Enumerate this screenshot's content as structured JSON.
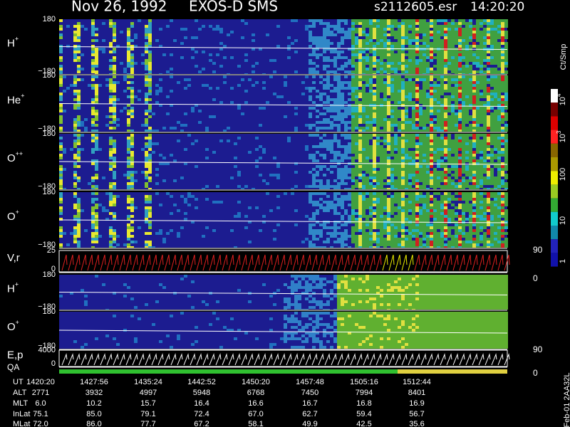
{
  "header": {
    "date": "Nov 26, 1992",
    "instrument": "EXOS-D SMS",
    "file": "s2112605.esr",
    "time": "14:20:20"
  },
  "panels": [
    {
      "label": "H",
      "sup": "+",
      "top": "180",
      "bottom": "−180"
    },
    {
      "label": "He",
      "sup": "+",
      "top": "180",
      "bottom": "−180"
    },
    {
      "label": "O",
      "sup": "++",
      "top": "180",
      "bottom": "−180"
    },
    {
      "label": "O",
      "sup": "+",
      "top": "180",
      "bottom": "−180"
    },
    {
      "label": "V,r",
      "top": "25",
      "bottom": "0",
      "right_top": "90",
      "right_bottom": "0"
    },
    {
      "label": "H",
      "sup": "+",
      "top": "180",
      "bottom": "−180"
    },
    {
      "label": "O",
      "sup": "+",
      "top": "180",
      "bottom": "−180"
    },
    {
      "label": "E,p",
      "top": "4000",
      "bottom": "0",
      "right_top": "90",
      "right_bottom": "0"
    }
  ],
  "qa_label": "QA",
  "colorbar": {
    "title": "Ct/Smp",
    "labels": [
      {
        "base": "10",
        "sup": "4"
      },
      {
        "base": "10",
        "sup": "3"
      },
      {
        "base": "100"
      },
      {
        "base": "10"
      },
      {
        "base": "1"
      }
    ]
  },
  "table": {
    "row_labels": [
      "UT",
      "ALT",
      "MLT",
      "InLat",
      "MLat"
    ],
    "rows": [
      [
        "1420:20",
        "1427:56",
        "1435:24",
        "1442:52",
        "1450:20",
        "1457:48",
        "1505:16",
        "1512:44"
      ],
      [
        "2771",
        "3932",
        "4997",
        "5948",
        "6768",
        "7450",
        "7994",
        "8401"
      ],
      [
        "6.0",
        "10.2",
        "15.7",
        "16.4",
        "16.6",
        "16.7",
        "16.8",
        "16.9"
      ],
      [
        "75.1",
        "85.0",
        "79.1",
        "72.4",
        "67.0",
        "62.7",
        "59.4",
        "56.7"
      ],
      [
        "72.0",
        "86.0",
        "77.7",
        "67.2",
        "58.1",
        "49.9",
        "42.5",
        "35.6"
      ]
    ]
  },
  "side_note": "Feb-01 2AA32L"
}
